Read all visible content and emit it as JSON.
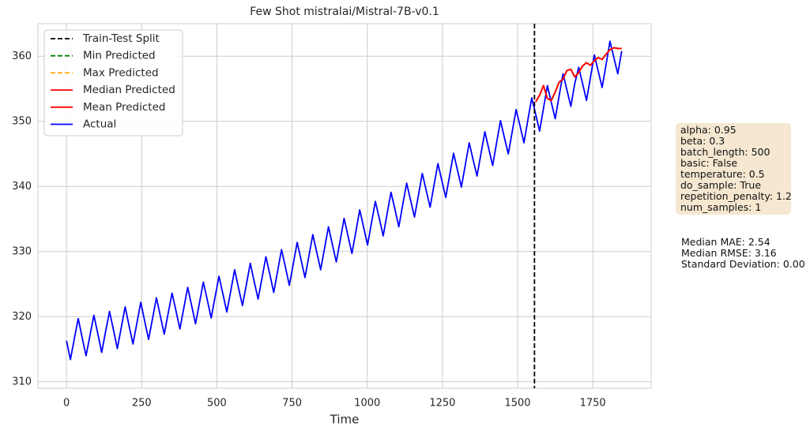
{
  "chart_data": {
    "type": "line",
    "title": "Few Shot mistralai/Mistral-7B-v0.1",
    "x_label": "Time",
    "xlim": [
      -95,
      1944
    ],
    "ylim": [
      309,
      365
    ],
    "xticks": [
      0,
      250,
      500,
      750,
      1000,
      1250,
      1500,
      1750
    ],
    "yticks": [
      310,
      320,
      330,
      340,
      350,
      360
    ],
    "grid": true,
    "legend": "upper left",
    "series": [
      {
        "name": "Train-Test Split",
        "color": "#000000",
        "dashed": true,
        "vline": 1556
      },
      {
        "name": "Min Predicted",
        "color": "#008000",
        "dashed": true,
        "x": [
          1560,
          1573,
          1586,
          1599,
          1612,
          1625,
          1638,
          1651,
          1664,
          1677,
          1690,
          1703,
          1716,
          1729,
          1742,
          1755,
          1768,
          1781,
          1794,
          1807,
          1820,
          1833,
          1846
        ],
        "values": [
          353.0,
          354.0,
          355.5,
          353.5,
          353.2,
          354.5,
          356.0,
          356.5,
          357.8,
          358.0,
          356.8,
          357.5,
          358.5,
          359.0,
          358.6,
          359.3,
          359.8,
          359.5,
          360.3,
          361.0,
          361.3,
          361.2,
          361.2
        ]
      },
      {
        "name": "Max Predicted",
        "color": "#ffa500",
        "dashed": true,
        "x": [
          1560,
          1573,
          1586,
          1599,
          1612,
          1625,
          1638,
          1651,
          1664,
          1677,
          1690,
          1703,
          1716,
          1729,
          1742,
          1755,
          1768,
          1781,
          1794,
          1807,
          1820,
          1833,
          1846
        ],
        "values": [
          353.0,
          354.0,
          355.5,
          353.5,
          353.2,
          354.5,
          356.0,
          356.5,
          357.8,
          358.0,
          356.8,
          357.5,
          358.5,
          359.0,
          358.6,
          359.3,
          359.8,
          359.5,
          360.3,
          361.0,
          361.3,
          361.2,
          361.2
        ]
      },
      {
        "name": "Median Predicted",
        "color": "#ff0000",
        "dashed": false,
        "x": [
          1560,
          1573,
          1586,
          1599,
          1612,
          1625,
          1638,
          1651,
          1664,
          1677,
          1690,
          1703,
          1716,
          1729,
          1742,
          1755,
          1768,
          1781,
          1794,
          1807,
          1820,
          1833,
          1846
        ],
        "values": [
          353.0,
          354.0,
          355.5,
          353.5,
          353.2,
          354.5,
          356.0,
          356.5,
          357.8,
          358.0,
          356.8,
          357.5,
          358.5,
          359.0,
          358.6,
          359.3,
          359.8,
          359.5,
          360.3,
          361.0,
          361.3,
          361.2,
          361.2
        ]
      },
      {
        "name": "Mean Predicted",
        "color": "#ff0000",
        "dashed": false,
        "x": [
          1560,
          1573,
          1586,
          1599,
          1612,
          1625,
          1638,
          1651,
          1664,
          1677,
          1690,
          1703,
          1716,
          1729,
          1742,
          1755,
          1768,
          1781,
          1794,
          1807,
          1820,
          1833,
          1846
        ],
        "values": [
          353.0,
          354.0,
          355.5,
          353.5,
          353.2,
          354.5,
          356.0,
          356.5,
          357.8,
          358.0,
          356.8,
          357.5,
          358.5,
          359.0,
          358.6,
          359.3,
          359.8,
          359.5,
          360.3,
          361.0,
          361.3,
          361.2,
          361.2
        ]
      },
      {
        "name": "Actual",
        "color": "#0000ff",
        "dashed": false,
        "x": [
          0,
          13,
          26,
          39,
          52,
          65,
          78,
          91,
          104,
          117,
          130,
          143,
          156,
          169,
          182,
          195,
          208,
          221,
          234,
          247,
          260,
          273,
          286,
          299,
          312,
          325,
          338,
          351,
          364,
          377,
          390,
          403,
          416,
          429,
          442,
          455,
          468,
          481,
          494,
          507,
          520,
          533,
          546,
          559,
          572,
          585,
          598,
          611,
          624,
          637,
          650,
          663,
          676,
          689,
          702,
          715,
          728,
          741,
          754,
          767,
          780,
          793,
          806,
          819,
          832,
          845,
          858,
          871,
          884,
          897,
          910,
          923,
          936,
          949,
          962,
          975,
          988,
          1001,
          1014,
          1027,
          1040,
          1053,
          1066,
          1079,
          1092,
          1105,
          1118,
          1131,
          1144,
          1157,
          1170,
          1183,
          1196,
          1209,
          1222,
          1235,
          1248,
          1261,
          1274,
          1287,
          1300,
          1313,
          1326,
          1339,
          1352,
          1365,
          1378,
          1391,
          1404,
          1417,
          1430,
          1443,
          1456,
          1469,
          1482,
          1495,
          1508,
          1521,
          1534,
          1547,
          1560,
          1573,
          1586,
          1599,
          1612,
          1625,
          1638,
          1651,
          1664,
          1677,
          1690,
          1703,
          1716,
          1729,
          1742,
          1755,
          1768,
          1781,
          1794,
          1807,
          1820,
          1833,
          1846
        ],
        "values": [
          316.3,
          313.4,
          316.6,
          319.7,
          316.8,
          314.0,
          317.1,
          320.2,
          317.4,
          314.5,
          317.7,
          320.8,
          318.0,
          315.1,
          318.3,
          321.5,
          318.6,
          315.8,
          319.0,
          322.2,
          319.3,
          316.5,
          319.7,
          322.9,
          320.1,
          317.3,
          320.5,
          323.6,
          320.9,
          318.1,
          321.3,
          324.5,
          321.7,
          318.9,
          322.1,
          325.3,
          322.6,
          319.8,
          323.0,
          326.2,
          323.5,
          320.7,
          323.9,
          327.2,
          324.4,
          321.7,
          324.9,
          328.2,
          325.4,
          322.7,
          325.9,
          329.2,
          326.5,
          323.7,
          327.0,
          330.3,
          327.6,
          324.8,
          328.1,
          331.4,
          328.7,
          326.0,
          329.3,
          332.6,
          329.9,
          327.2,
          330.5,
          333.8,
          331.1,
          328.4,
          331.7,
          335.1,
          332.4,
          329.7,
          333.0,
          336.4,
          333.7,
          331.0,
          334.4,
          337.7,
          335.1,
          332.4,
          335.8,
          339.1,
          336.5,
          333.8,
          337.2,
          340.5,
          337.9,
          335.3,
          338.6,
          342.0,
          339.4,
          336.8,
          340.2,
          343.5,
          340.9,
          338.3,
          341.7,
          345.1,
          342.5,
          339.9,
          343.3,
          346.7,
          344.1,
          341.6,
          345.0,
          348.4,
          345.8,
          343.2,
          346.7,
          350.1,
          347.5,
          345.0,
          348.4,
          351.8,
          349.3,
          346.7,
          350.2,
          353.6,
          351.1,
          348.5,
          352.0,
          355.5,
          352.9,
          350.4,
          353.9,
          357.3,
          354.8,
          352.3,
          355.8,
          358.3,
          355.8,
          353.2,
          356.7,
          360.2,
          357.7,
          355.2,
          358.7,
          362.3,
          359.8,
          357.3,
          360.8
        ]
      }
    ],
    "annotations": {
      "params": [
        "alpha: 0.95",
        "beta: 0.3",
        "batch_length: 500",
        "basic: False",
        "temperature: 0.5",
        "do_sample: True",
        "repetition_penalty: 1.2",
        "num_samples: 1"
      ],
      "metrics": [
        "Median MAE: 2.54",
        "Median RMSE: 3.16",
        "Standard Deviation: 0.00"
      ]
    }
  }
}
